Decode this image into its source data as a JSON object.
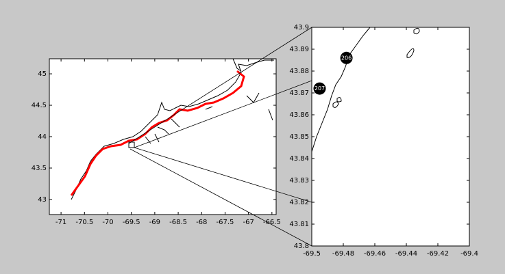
{
  "chart_data": [
    {
      "type": "map",
      "xlim": [
        -71.25,
        -66.41
      ],
      "xticks": [
        -71,
        -70.5,
        -70,
        -69.5,
        -69,
        -68.5,
        -68,
        -67.5,
        -67,
        -66.5
      ],
      "ylim": [
        42.76,
        45.24
      ],
      "yticks": [
        43,
        43.5,
        44,
        44.5,
        45
      ]
    },
    {
      "type": "scatter",
      "xlim": [
        -69.5,
        -69.4
      ],
      "xticks": [
        -69.5,
        -69.48,
        -69.46,
        -69.44,
        -69.42,
        -69.4
      ],
      "ylim": [
        43.8,
        43.9
      ],
      "yticks": [
        43.8,
        43.81,
        43.82,
        43.83,
        43.84,
        43.85,
        43.86,
        43.87,
        43.88,
        43.89,
        43.9
      ],
      "x": [
        -69.478,
        -69.495
      ],
      "y": [
        43.886,
        43.872
      ],
      "point_labels": [
        "206",
        "207"
      ]
    }
  ]
}
